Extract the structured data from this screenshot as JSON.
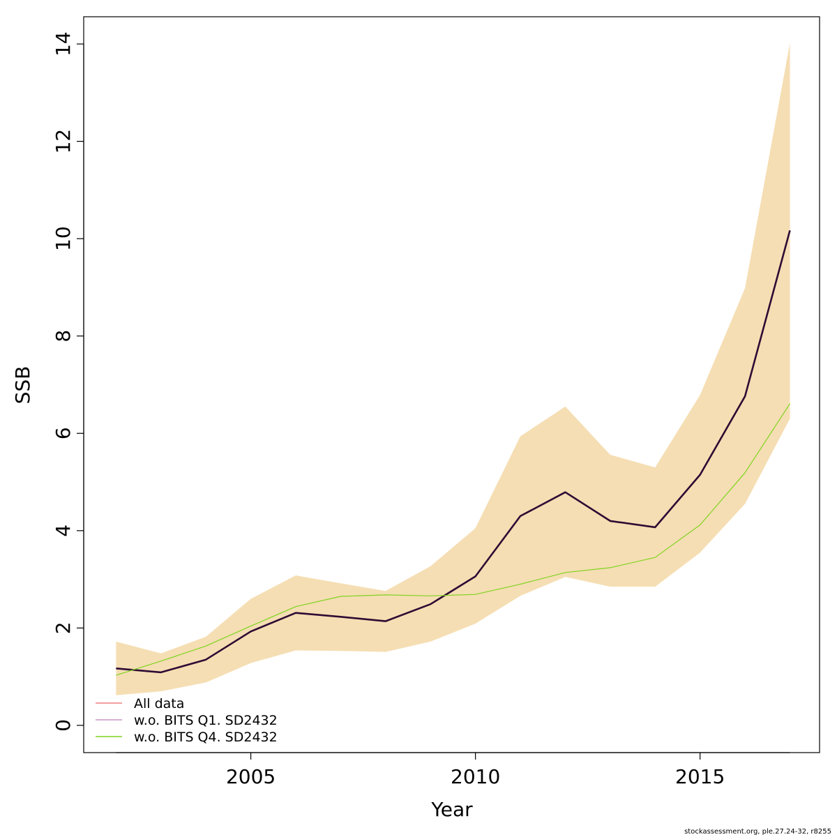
{
  "chart_data": {
    "type": "line",
    "xlabel": "Year",
    "ylabel": "SSB",
    "xlim": [
      2001.28,
      2017.66
    ],
    "ylim": [
      -0.56,
      14.56
    ],
    "x_ticks": [
      2005,
      2010,
      2015
    ],
    "y_ticks": [
      0,
      2,
      4,
      6,
      8,
      10,
      12,
      14
    ],
    "grid": false,
    "legend_position": "bottom-left",
    "x": [
      2002,
      2003,
      2004,
      2005,
      2006,
      2007,
      2008,
      2009,
      2010,
      2011,
      2012,
      2013,
      2014,
      2015,
      2016,
      2017
    ],
    "band": {
      "color": "#f5deb3",
      "lower": [
        0.62,
        0.7,
        0.88,
        1.28,
        1.54,
        1.53,
        1.51,
        1.72,
        2.09,
        2.66,
        3.05,
        2.85,
        2.85,
        3.55,
        4.55,
        6.3
      ],
      "upper": [
        1.72,
        1.48,
        1.82,
        2.6,
        3.08,
        2.92,
        2.76,
        3.27,
        4.05,
        5.94,
        6.55,
        5.56,
        5.3,
        6.79,
        8.98,
        14.02
      ]
    },
    "series": [
      {
        "name": "All data",
        "color": "#f08080",
        "legend_color": "#f08080",
        "drawn": false,
        "values": [
          1.17,
          1.09,
          1.35,
          1.93,
          2.31,
          2.23,
          2.14,
          2.49,
          3.06,
          4.3,
          4.79,
          4.2,
          4.07,
          5.15,
          6.76,
          10.17
        ]
      },
      {
        "name": "w.o. BITS Q1. SD2432",
        "color": "#2e0b34",
        "legend_color": "#c896c8",
        "drawn": true,
        "values": [
          1.17,
          1.09,
          1.35,
          1.93,
          2.31,
          2.23,
          2.14,
          2.49,
          3.06,
          4.3,
          4.79,
          4.2,
          4.07,
          5.15,
          6.76,
          10.17
        ]
      },
      {
        "name": "w.o. BITS Q4. SD2432",
        "color": "#7fd320",
        "legend_color": "#7fd320",
        "drawn": true,
        "values": [
          1.03,
          1.32,
          1.63,
          2.04,
          2.44,
          2.65,
          2.68,
          2.66,
          2.69,
          2.9,
          3.14,
          3.24,
          3.45,
          4.12,
          5.19,
          6.61
        ]
      }
    ]
  },
  "footer": "stockassessment.org, ple.27.24-32, r8255"
}
